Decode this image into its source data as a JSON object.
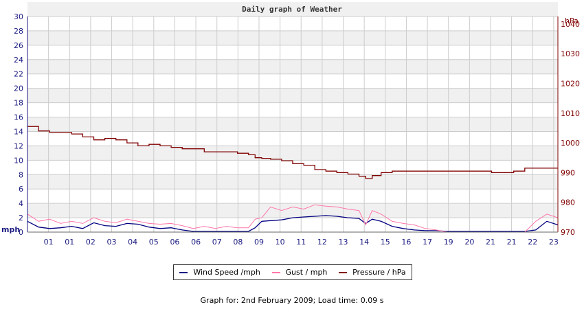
{
  "chart_data": {
    "type": "line",
    "title": "Daily graph of Weather",
    "x_tick_labels": [
      "01",
      "01",
      "02",
      "03",
      "04",
      "05",
      "06",
      "06",
      "07",
      "08",
      "09",
      "10",
      "11",
      "12",
      "13",
      "14",
      "15",
      "16",
      "17",
      "19",
      "20",
      "21",
      "21",
      "22",
      "23"
    ],
    "y_left": {
      "unit": "mph",
      "ticks": [
        "0",
        "2",
        "4",
        "6",
        "8",
        "10",
        "12",
        "14",
        "16",
        "18",
        "20",
        "22",
        "24",
        "26",
        "28",
        "30"
      ],
      "ylim": [
        0,
        30
      ]
    },
    "y_right": {
      "unit": "hPa",
      "ticks": [
        "970",
        "980",
        "990",
        "1000",
        "1010",
        "1020",
        "1030",
        "1040"
      ],
      "ylim": [
        970,
        1042.5
      ]
    },
    "grid": true,
    "legend_position": "bottom",
    "series": [
      {
        "name": "Wind Speed /mph",
        "axis": "left",
        "color": "#000080",
        "x": [
          0,
          0.5,
          1,
          1.5,
          2,
          2.5,
          3,
          3.5,
          4,
          4.5,
          5,
          5.5,
          6,
          6.5,
          7,
          7.5,
          8,
          8.5,
          9,
          9.5,
          10,
          10.3,
          10.6,
          11,
          11.5,
          12,
          12.5,
          13,
          13.5,
          14,
          14.5,
          15,
          15.3,
          15.6,
          16,
          16.5,
          17,
          17.5,
          18,
          18.5,
          19,
          19.5,
          20,
          20.5,
          21,
          21.5,
          22,
          22.5,
          23,
          23.5,
          24
        ],
        "y": [
          1.5,
          0.7,
          0.5,
          0.6,
          0.8,
          0.5,
          1.3,
          0.9,
          0.8,
          1.2,
          1.1,
          0.7,
          0.5,
          0.6,
          0.3,
          0.1,
          0.1,
          0.1,
          0.1,
          0.1,
          0.1,
          0.6,
          1.5,
          1.6,
          1.7,
          2.0,
          2.1,
          2.2,
          2.3,
          2.2,
          2.0,
          1.9,
          1.2,
          1.8,
          1.5,
          0.8,
          0.5,
          0.3,
          0.2,
          0.2,
          0.1,
          0.1,
          0.1,
          0.1,
          0.1,
          0.1,
          0.1,
          0.1,
          0.3,
          1.5,
          1.0
        ]
      },
      {
        "name": "Gust / mph",
        "axis": "left",
        "color": "#ff77aa",
        "x": [
          0,
          0.5,
          1,
          1.5,
          2,
          2.5,
          3,
          3.5,
          4,
          4.5,
          5,
          5.5,
          6,
          6.5,
          7,
          7.5,
          8,
          8.5,
          9,
          9.5,
          10,
          10.3,
          10.6,
          11,
          11.5,
          12,
          12.5,
          13,
          13.5,
          14,
          14.5,
          15,
          15.3,
          15.6,
          16,
          16.5,
          17,
          17.5,
          18,
          18.5,
          19,
          19.5,
          20,
          20.5,
          21,
          21.5,
          22,
          22.5,
          23,
          23.5,
          24
        ],
        "y": [
          2.5,
          1.5,
          1.8,
          1.2,
          1.5,
          1.2,
          2.0,
          1.5,
          1.3,
          1.8,
          1.5,
          1.2,
          1.1,
          1.2,
          0.9,
          0.5,
          0.8,
          0.5,
          0.8,
          0.6,
          0.6,
          1.8,
          2.0,
          3.5,
          3.0,
          3.5,
          3.2,
          3.8,
          3.6,
          3.5,
          3.2,
          3.0,
          1.0,
          3.0,
          2.5,
          1.5,
          1.2,
          1.0,
          0.5,
          0.3,
          0,
          0,
          0,
          0,
          0,
          0,
          0,
          0,
          1.5,
          2.5,
          2.0
        ]
      },
      {
        "name": "Pressure / hPa",
        "axis": "right",
        "color": "#800000",
        "x": [
          0,
          0.5,
          1,
          1.5,
          2,
          2.5,
          3,
          3.5,
          4,
          4.5,
          5,
          5.5,
          6,
          6.5,
          7,
          7.5,
          8,
          8.5,
          9,
          9.5,
          10,
          10.3,
          10.6,
          11,
          11.5,
          12,
          12.5,
          13,
          13.5,
          14,
          14.5,
          15,
          15.3,
          15.6,
          16,
          16.5,
          17,
          17.5,
          18,
          18.5,
          19,
          19.5,
          20,
          20.5,
          21,
          21.5,
          22,
          22.5,
          23,
          23.5,
          24
        ],
        "y": [
          1005.5,
          1004,
          1003.5,
          1003.5,
          1003,
          1002,
          1001,
          1001.5,
          1001,
          1000,
          999,
          999.5,
          999,
          998.5,
          998,
          998,
          997,
          997,
          997,
          996.5,
          996,
          995,
          994.8,
          994.5,
          994,
          993,
          992.5,
          991,
          990.5,
          990,
          989.5,
          988.8,
          988,
          989,
          990,
          990.5,
          990.5,
          990.5,
          990.5,
          990.5,
          990.5,
          990.5,
          990.5,
          990.5,
          990,
          990,
          990.5,
          991.5,
          991.5,
          991.5,
          991.5
        ]
      }
    ]
  },
  "legend": {
    "wind": "Wind Speed /mph",
    "gust": "Gust / mph",
    "pressure": "Pressure / hPa"
  },
  "footer": {
    "text": "Graph for: 2nd February 2009; Load time: 0.09 s"
  },
  "colors": {
    "wind": "#000080",
    "gust": "#ff77aa",
    "pressure": "#800000",
    "band": "#f0f0f0",
    "grid": "#cccccc"
  }
}
